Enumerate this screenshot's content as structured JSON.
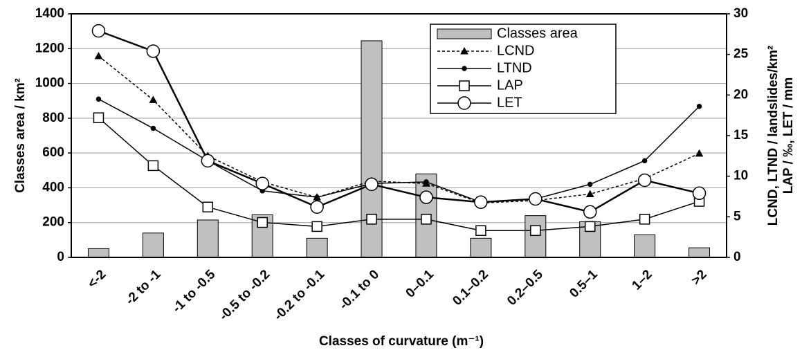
{
  "chart_data": {
    "type": "bar-line",
    "x_label": "Classes of curvature (m⁻¹)",
    "y_label": "Classes area / km²",
    "y2_label": [
      "LCND, LTND / landslides/km²",
      "LAP / ‰, LET / mm"
    ],
    "categories": [
      "<-2",
      "-2 to -1",
      "-1 to -0.5",
      "-0.5 to -0.2",
      "-0.2 to -0.1",
      "-0.1 to 0",
      "0–0.1",
      "0.1–0.2",
      "0.2–0.5",
      "0.5–1",
      "1–2",
      ">2"
    ],
    "series": [
      {
        "name": "Classes area",
        "type": "bar",
        "axis": "y",
        "color": "#c0c0c0",
        "values": [
          50,
          140,
          215,
          245,
          110,
          1245,
          480,
          110,
          240,
          205,
          130,
          55
        ]
      },
      {
        "name": "LCND",
        "type": "line",
        "axis": "y2",
        "color": "#000000",
        "marker": "triangle",
        "dash": true,
        "values": [
          24.8,
          19.4,
          12.5,
          9.3,
          7.4,
          9.4,
          9.1,
          6.7,
          7.0,
          7.8,
          9.7,
          12.8
        ]
      },
      {
        "name": "LTND",
        "type": "line",
        "axis": "y2",
        "color": "#000000",
        "marker": "dot",
        "dash": false,
        "values": [
          19.5,
          15.9,
          11.9,
          8.2,
          7.4,
          9.1,
          9.3,
          6.8,
          7.2,
          9.0,
          11.9,
          18.6
        ]
      },
      {
        "name": "LAP",
        "type": "line",
        "axis": "y2",
        "color": "#000000",
        "marker": "square",
        "dash": false,
        "values": [
          17.2,
          11.3,
          6.2,
          4.3,
          3.8,
          4.7,
          4.7,
          3.3,
          3.3,
          3.8,
          4.7,
          6.9
        ]
      },
      {
        "name": "LET",
        "type": "line",
        "axis": "y2",
        "color": "#000000",
        "marker": "circle",
        "dash": false,
        "values": [
          27.9,
          25.4,
          11.9,
          9.1,
          6.2,
          9.0,
          7.4,
          6.8,
          7.2,
          5.6,
          9.5,
          7.9
        ]
      }
    ],
    "ylim": [
      0,
      1400
    ],
    "yticks": [
      0,
      200,
      400,
      600,
      800,
      1000,
      1200,
      1400
    ],
    "y2lim": [
      0,
      30
    ],
    "y2ticks": [
      0,
      5,
      10,
      15,
      20,
      25,
      30
    ],
    "grid": true,
    "legend": "top-right"
  }
}
